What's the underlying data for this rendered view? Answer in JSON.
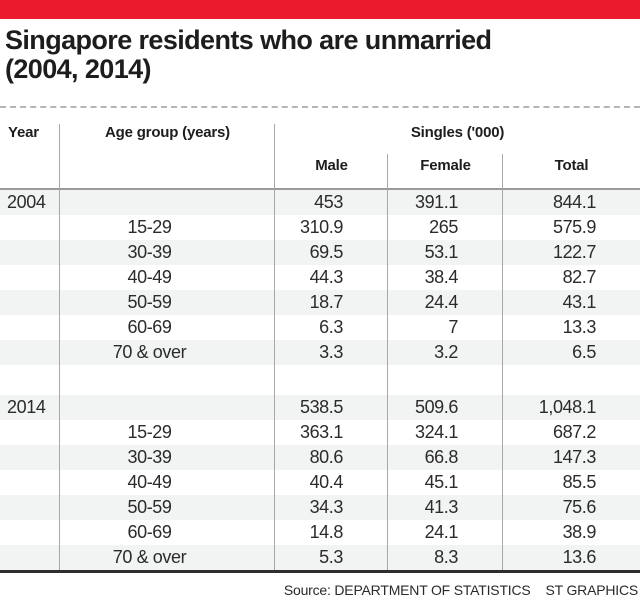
{
  "title": {
    "line1": "Singapore residents who are unmarried",
    "line2": "(2004, 2014)"
  },
  "header": {
    "year": "Year",
    "age_group": "Age group (years)",
    "singles_group": "Singles ('000)",
    "male": "Male",
    "female": "Female",
    "total": "Total"
  },
  "chart_data": {
    "type": "table",
    "title": "Singapore residents who are unmarried (2004, 2014)",
    "unit": "Singles ('000)",
    "columns": [
      "Year",
      "Age group (years)",
      "Male",
      "Female",
      "Total"
    ],
    "sections": [
      {
        "year": "2004",
        "summary": {
          "male": "453",
          "female": "391.1",
          "total": "844.1"
        },
        "rows": [
          {
            "age": "15-29",
            "male": "310.9",
            "female": "265",
            "total": "575.9"
          },
          {
            "age": "30-39",
            "male": "69.5",
            "female": "53.1",
            "total": "122.7"
          },
          {
            "age": "40-49",
            "male": "44.3",
            "female": "38.4",
            "total": "82.7"
          },
          {
            "age": "50-59",
            "male": "18.7",
            "female": "24.4",
            "total": "43.1"
          },
          {
            "age": "60-69",
            "male": "6.3",
            "female": "7",
            "total": "13.3"
          },
          {
            "age": "70 & over",
            "male": "3.3",
            "female": "3.2",
            "total": "6.5"
          }
        ]
      },
      {
        "year": "2014",
        "summary": {
          "male": "538.5",
          "female": "509.6",
          "total": "1,048.1"
        },
        "rows": [
          {
            "age": "15-29",
            "male": "363.1",
            "female": "324.1",
            "total": "687.2"
          },
          {
            "age": "30-39",
            "male": "80.6",
            "female": "66.8",
            "total": "147.3"
          },
          {
            "age": "40-49",
            "male": "40.4",
            "female": "45.1",
            "total": "85.5"
          },
          {
            "age": "50-59",
            "male": "34.3",
            "female": "41.3",
            "total": "75.6"
          },
          {
            "age": "60-69",
            "male": "14.8",
            "female": "24.1",
            "total": "38.9"
          },
          {
            "age": "70 & over",
            "male": "5.3",
            "female": "8.3",
            "total": "13.6"
          }
        ]
      }
    ]
  },
  "footer": {
    "source": "Source: DEPARTMENT OF STATISTICS",
    "credit": "ST GRAPHICS"
  },
  "colors": {
    "accent_red": "#ea1b2c",
    "row_alt_gray": "#f2f3f3",
    "grid_line": "#a8a8a8",
    "header_rule": "#9c9c9c",
    "bottom_rule": "#2e2e2e",
    "text": "#1d1d1d"
  }
}
